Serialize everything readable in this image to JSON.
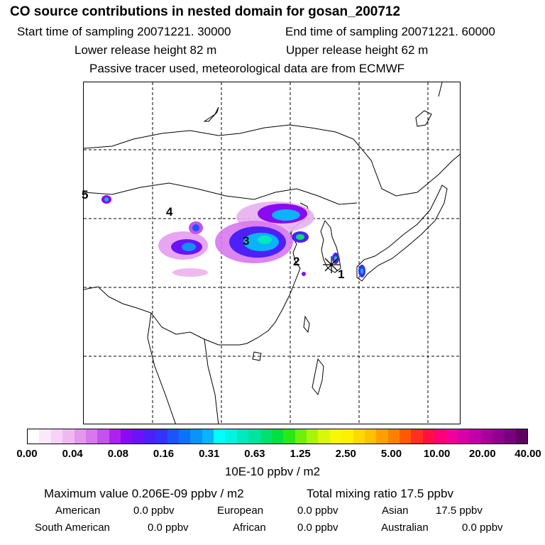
{
  "header": {
    "title": "CO  source contributions in nested domain for gosan_200712",
    "start_time": "Start time of sampling 20071221. 30000",
    "end_time": "End time of sampling 20071221. 60000",
    "lower_height": "Lower release height   82 m",
    "upper_height": "Upper release height   62 m",
    "tracer_note": "Passive tracer used, meteorological data are from ECMWF"
  },
  "map": {
    "site_labels": [
      "1",
      "2",
      "3",
      "4",
      "5"
    ],
    "receptor_icon": "asterisk-icon"
  },
  "colorbar": {
    "tick_labels": [
      "0.00",
      "0.04",
      "0.08",
      "0.16",
      "0.31",
      "0.63",
      "1.25",
      "2.50",
      "5.00",
      "10.00",
      "20.00",
      "40.00"
    ],
    "unit": "10E-10 ppbv / m2",
    "colors": [
      "#ffffff",
      "#fbe8fb",
      "#f6d2f6",
      "#f0b8f0",
      "#e497ee",
      "#d877ee",
      "#c552f0",
      "#ae22f0",
      "#8a0af2",
      "#6b13f6",
      "#4e20f8",
      "#3433fa",
      "#1b55fa",
      "#0a73fa",
      "#0a94fa",
      "#0ab3fa",
      "#00ffff",
      "#00f4e0",
      "#00e8c0",
      "#00e4a0",
      "#00e070",
      "#00e040",
      "#2ae818",
      "#6ef00a",
      "#a8f50a",
      "#d8f80a",
      "#f6f80a",
      "#fff000",
      "#ffd800",
      "#ffc000",
      "#ffa000",
      "#ff8000",
      "#ff5a00",
      "#ff3020",
      "#ff1040",
      "#ff0078",
      "#f0009a",
      "#d800a8",
      "#c000a8",
      "#a8009c",
      "#900090",
      "#780080",
      "#600060"
    ]
  },
  "summary": {
    "max_value": "Maximum value  0.206E-09 ppbv / m2",
    "total_mixing": "Total mixing ratio       17.5 ppbv",
    "american_label": "American",
    "american_value": "0.0 ppbv",
    "european_label": "European",
    "european_value": "0.0 ppbv",
    "asian_label": "Asian",
    "asian_value": "17.5 ppbv",
    "south_american_label": "South American",
    "south_american_value": "0.0 ppbv",
    "african_label": "African",
    "african_value": "0.0 ppbv",
    "australian_label": "Australian",
    "australian_value": "0.0 ppbv"
  }
}
